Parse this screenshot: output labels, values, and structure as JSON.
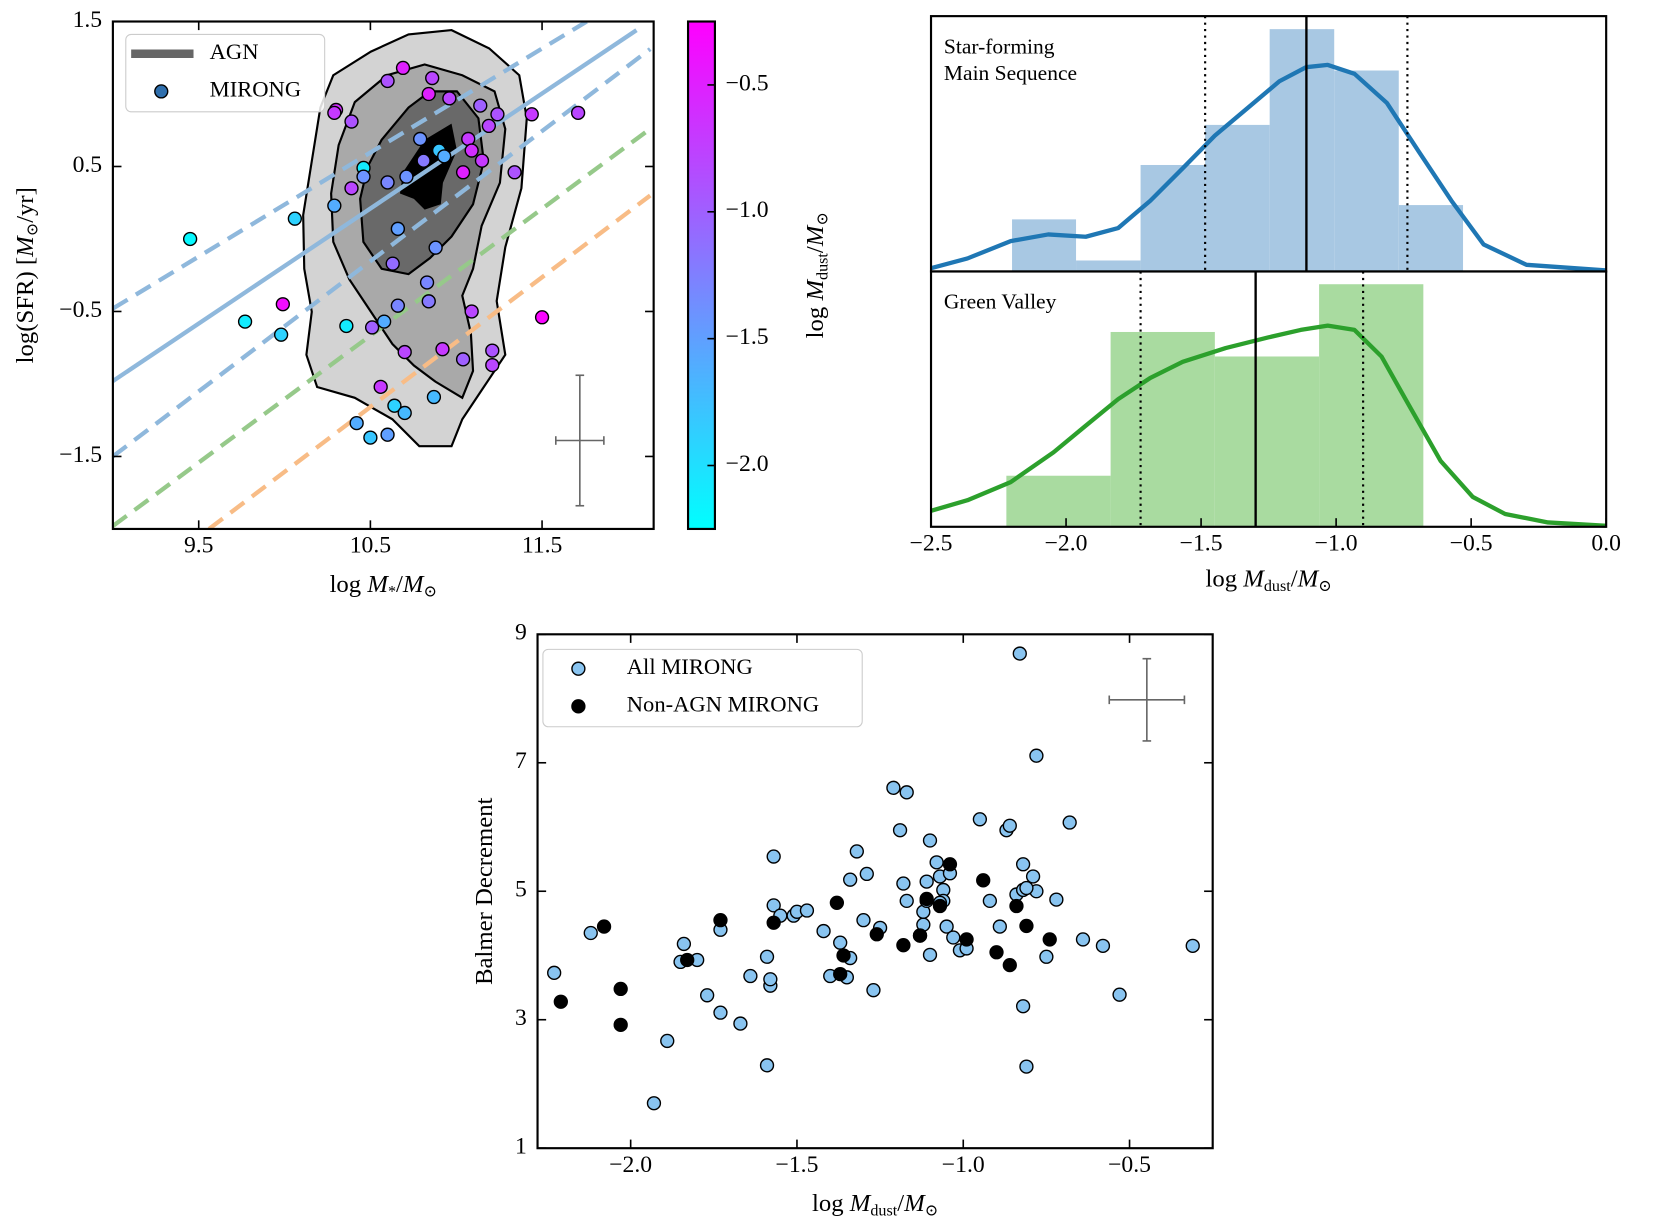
{
  "chart_data": [
    {
      "type": "scatter",
      "xlabel": [
        {
          "text": "log "
        },
        {
          "text": "M",
          "style": "i"
        },
        {
          "text": "*",
          "style": "sub"
        },
        {
          "text": "/"
        },
        {
          "text": "M",
          "style": "i"
        },
        {
          "text": "⊙",
          "style": "sub"
        }
      ],
      "ylabel": [
        {
          "text": "log(SFR) ["
        },
        {
          "text": "M",
          "style": "i"
        },
        {
          "text": "⊙",
          "style": "sub"
        },
        {
          "text": "/yr]"
        }
      ],
      "xlim": [
        9.0,
        12.15
      ],
      "ylim": [
        -2.0,
        1.5
      ],
      "xticks": [
        9.5,
        10.5,
        11.5
      ],
      "yticks": [
        1.5,
        0.5,
        {
          "value": -0.5,
          "label": "−0.5"
        },
        {
          "value": -1.5,
          "label": "−1.5"
        }
      ],
      "legend": "upper left",
      "series": [
        {
          "name": "AGN",
          "color": "#666666"
        },
        {
          "name": "MIRONG",
          "color": "#2f6fad",
          "x": [
            9.45,
            9.99,
            9.77,
            9.98,
            10.06,
            10.3,
            10.39,
            10.46,
            10.6,
            10.69,
            10.86,
            10.84,
            10.96,
            11.14,
            11.24,
            11.44,
            11.71,
            11.5,
            11.07,
            11.04,
            11.09,
            10.9,
            10.93,
            10.81,
            10.71,
            10.6,
            10.46,
            10.39,
            10.29,
            10.66,
            10.63,
            10.88,
            10.83,
            10.84,
            10.66,
            10.58,
            10.51,
            11.09,
            10.7,
            10.92,
            11.04,
            11.21,
            11.21,
            10.56,
            10.64,
            10.87,
            10.7,
            10.42,
            10.5,
            10.6,
            10.36,
            11.34,
            11.15,
            11.19,
            10.29,
            10.79
          ],
          "y": [
            0.0,
            -0.45,
            -0.57,
            -0.66,
            0.14,
            0.89,
            0.81,
            0.49,
            1.09,
            1.18,
            1.11,
            1.0,
            0.97,
            0.92,
            0.86,
            0.86,
            0.87,
            -0.54,
            0.69,
            0.46,
            0.61,
            0.61,
            0.57,
            0.54,
            0.43,
            0.39,
            0.43,
            0.35,
            0.23,
            0.07,
            -0.17,
            -0.06,
            -0.3,
            -0.43,
            -0.46,
            -0.57,
            -0.61,
            -0.5,
            -0.78,
            -0.76,
            -0.83,
            -0.77,
            -0.87,
            -1.02,
            -1.15,
            -1.09,
            -1.2,
            -1.27,
            -1.37,
            -1.35,
            -0.6,
            0.46,
            0.54,
            0.78,
            0.87,
            0.69
          ],
          "c": [
            -2.2,
            -0.35,
            -2.1,
            -1.9,
            -1.9,
            -0.6,
            -0.9,
            -2.1,
            -0.9,
            -0.5,
            -0.8,
            -0.5,
            -0.8,
            -1.0,
            -0.9,
            -0.7,
            -0.8,
            -0.3,
            -0.7,
            -0.5,
            -0.6,
            -1.8,
            -1.6,
            -1.2,
            -1.4,
            -1.3,
            -1.4,
            -0.8,
            -1.6,
            -1.5,
            -1.1,
            -1.4,
            -1.3,
            -1.2,
            -1.3,
            -1.6,
            -1.0,
            -0.8,
            -0.8,
            -0.7,
            -1.0,
            -0.9,
            -0.8,
            -0.7,
            -1.9,
            -1.7,
            -1.7,
            -1.6,
            -1.8,
            -1.5,
            -2.1,
            -0.9,
            -0.7,
            -0.8,
            -0.7,
            -1.4
          ]
        }
      ],
      "colorbar": {
        "label": [
          {
            "text": "log "
          },
          {
            "text": "M",
            "style": "i"
          },
          {
            "text": "dust",
            "style": "sub"
          },
          {
            "text": "/"
          },
          {
            "text": "M",
            "style": "i"
          },
          {
            "text": "⊙",
            "style": "sub"
          }
        ],
        "lim": [
          -2.25,
          -0.25
        ],
        "colors": [
          "#00ffff",
          "#ff00ff"
        ],
        "ticks": [
          {
            "value": -0.5,
            "label": "−0.5"
          },
          {
            "value": -1.0,
            "label": "−1.0"
          },
          {
            "value": -1.5,
            "label": "−1.5"
          },
          {
            "value": -2.0,
            "label": "−2.0"
          }
        ]
      },
      "reference_lines": [
        {
          "color": "#8fb8dc",
          "dashed": true,
          "x": [
            9.0,
            11.76
          ],
          "y": [
            -0.48,
            1.5
          ]
        },
        {
          "color": "#8fb8dc",
          "dashed": false,
          "x": [
            9.0,
            12.05
          ],
          "y": [
            -0.98,
            1.44
          ]
        },
        {
          "color": "#8fb8dc",
          "dashed": true,
          "x": [
            9.0,
            12.13
          ],
          "y": [
            -1.5,
            1.31
          ]
        },
        {
          "color": "#96c98a",
          "dashed": true,
          "x": [
            9.0,
            12.13
          ],
          "y": [
            -1.98,
            0.76
          ]
        },
        {
          "color": "#f8bc86",
          "dashed": true,
          "x": [
            9.56,
            12.13
          ],
          "y": [
            -2.0,
            0.3
          ]
        }
      ],
      "error_bar": {
        "x": 11.72,
        "y": -1.39,
        "xerr": 0.14,
        "yerr": 0.45,
        "color": "#666666"
      }
    },
    {
      "type": "histogram",
      "xlabel": [
        {
          "text": "log "
        },
        {
          "text": "M",
          "style": "i"
        },
        {
          "text": "dust",
          "style": "sub"
        },
        {
          "text": "/"
        },
        {
          "text": "M",
          "style": "i"
        },
        {
          "text": "⊙",
          "style": "sub"
        }
      ],
      "xlim": [
        -2.5,
        0.0
      ],
      "ylim": [
        0,
        1
      ],
      "xticks": [
        {
          "value": -2.5,
          "label": "−2.5"
        },
        {
          "value": -2.0,
          "label": "−2.0"
        },
        {
          "value": -1.5,
          "label": "−1.5"
        },
        {
          "value": -1.0,
          "label": "−1.0"
        },
        {
          "value": -0.5,
          "label": "−0.5"
        },
        {
          "value": 0.0,
          "label": "0.0"
        }
      ],
      "panels": [
        {
          "label": [
            "Star-forming",
            "Main Sequence"
          ],
          "color": "#1f77b4",
          "bar_color": "#a8c8e3",
          "bins": [
            -2.2,
            -1.963,
            -1.724,
            -1.485,
            -1.246,
            -1.007,
            -0.768,
            -0.53
          ],
          "counts": [
            0.204,
            0.043,
            0.417,
            0.574,
            0.949,
            0.787,
            0.26
          ],
          "kde": {
            "x": [
              -2.5,
              -2.365,
              -2.205,
              -2.066,
              -1.927,
              -1.807,
              -1.688,
              -1.568,
              -1.449,
              -1.33,
              -1.21,
              -1.111,
              -1.031,
              -0.932,
              -0.812,
              -0.693,
              -0.573,
              -0.454,
              -0.295,
              0.0
            ],
            "y": [
              0.013,
              0.051,
              0.119,
              0.145,
              0.136,
              0.17,
              0.277,
              0.404,
              0.532,
              0.638,
              0.745,
              0.8,
              0.809,
              0.774,
              0.66,
              0.468,
              0.277,
              0.106,
              0.026,
              0.004
            ]
          },
          "lines": [
            {
              "value": -1.11,
              "style": "solid"
            },
            {
              "value": -1.485,
              "style": "dotted"
            },
            {
              "value": -0.736,
              "style": "dotted"
            }
          ]
        },
        {
          "label": [
            "Green Valley"
          ],
          "color": "#2ca02c",
          "bar_color": "#a9dba0",
          "bins": [
            -2.221,
            -1.835,
            -1.449,
            -1.063,
            -0.677
          ],
          "counts": [
            0.2,
            0.763,
            0.667,
            0.95
          ],
          "kde": {
            "x": [
              -2.5,
              -2.365,
              -2.205,
              -2.046,
              -1.927,
              -1.807,
              -1.688,
              -1.568,
              -1.409,
              -1.25,
              -1.131,
              -1.031,
              -0.932,
              -0.832,
              -0.732,
              -0.613,
              -0.494,
              -0.374,
              -0.215,
              0.0
            ],
            "y": [
              0.0625,
              0.104,
              0.175,
              0.292,
              0.396,
              0.5,
              0.583,
              0.646,
              0.7,
              0.742,
              0.771,
              0.788,
              0.771,
              0.667,
              0.479,
              0.258,
              0.117,
              0.05,
              0.017,
              0.004
            ]
          },
          "lines": [
            {
              "value": -1.298,
              "style": "solid"
            },
            {
              "value": -1.724,
              "style": "dotted"
            },
            {
              "value": -0.9,
              "style": "dotted"
            }
          ]
        }
      ]
    },
    {
      "type": "scatter",
      "xlabel": [
        {
          "text": "log "
        },
        {
          "text": "M",
          "style": "i"
        },
        {
          "text": "dust",
          "style": "sub"
        },
        {
          "text": "/"
        },
        {
          "text": "M",
          "style": "i"
        },
        {
          "text": "⊙",
          "style": "sub"
        }
      ],
      "ylabel": [
        {
          "text": "Balmer Decrement"
        }
      ],
      "xlim": [
        -2.28,
        -0.25
      ],
      "ylim": [
        1,
        9
      ],
      "xticks": [
        {
          "value": -2.0,
          "label": "−2.0"
        },
        {
          "value": -1.5,
          "label": "−1.5"
        },
        {
          "value": -1.0,
          "label": "−1.0"
        },
        {
          "value": -0.5,
          "label": "−0.5"
        }
      ],
      "yticks": [
        9,
        7,
        5,
        3,
        1
      ],
      "legend": "upper left",
      "series": [
        {
          "name": "All MIRONG",
          "color": "#89c4f0",
          "x": [
            -2.23,
            -2.12,
            -1.93,
            -1.89,
            -1.85,
            -1.84,
            -1.8,
            -1.77,
            -1.73,
            -1.73,
            -1.67,
            -1.64,
            -1.59,
            -1.58,
            -1.58,
            -1.59,
            -1.57,
            -1.57,
            -1.55,
            -1.51,
            -1.5,
            -1.47,
            -1.42,
            -1.4,
            -1.37,
            -1.35,
            -1.34,
            -1.34,
            -1.32,
            -1.3,
            -1.29,
            -1.27,
            -1.25,
            -1.21,
            -1.17,
            -1.19,
            -1.17,
            -1.12,
            -1.12,
            -1.11,
            -1.1,
            -1.1,
            -1.08,
            -1.07,
            -1.06,
            -1.06,
            -1.05,
            -1.04,
            -1.03,
            -1.01,
            -0.99,
            -0.95,
            -0.92,
            -0.89,
            -0.87,
            -0.86,
            -0.84,
            -0.83,
            -0.82,
            -0.82,
            -0.82,
            -0.81,
            -0.78,
            -0.79,
            -0.78,
            -0.75,
            -0.72,
            -0.68,
            -0.64,
            -0.58,
            -0.53,
            -0.31,
            -1.11,
            -1.18,
            -1.13,
            -1.07,
            -0.81
          ],
          "y": [
            3.73,
            4.35,
            1.7,
            2.67,
            3.9,
            4.18,
            3.93,
            3.38,
            3.11,
            4.4,
            2.94,
            3.68,
            2.29,
            3.53,
            3.63,
            3.98,
            5.54,
            4.78,
            4.62,
            4.62,
            4.68,
            4.7,
            4.38,
            3.68,
            4.2,
            3.66,
            5.18,
            3.96,
            5.62,
            4.55,
            5.27,
            3.46,
            4.43,
            6.61,
            6.54,
            5.95,
            4.85,
            4.48,
            4.68,
            4.85,
            5.79,
            4.01,
            5.45,
            5.23,
            5.02,
            4.85,
            4.45,
            5.28,
            4.28,
            4.08,
            4.11,
            6.12,
            4.85,
            4.45,
            5.95,
            6.02,
            4.95,
            8.7,
            5.42,
            5.02,
            3.21,
            2.27,
            7.11,
            5.23,
            5.0,
            3.98,
            4.87,
            6.07,
            4.25,
            4.15,
            3.39,
            4.15,
            5.15,
            5.12,
            4.31,
            4.82,
            5.05
          ]
        },
        {
          "name": "Non-AGN MIRONG",
          "color": "#000000",
          "x": [
            -2.21,
            -2.08,
            -2.03,
            -2.03,
            -1.83,
            -1.73,
            -1.57,
            -1.38,
            -1.36,
            -1.37,
            -1.26,
            -1.18,
            -1.13,
            -1.11,
            -1.07,
            -1.04,
            -0.99,
            -0.94,
            -0.9,
            -0.86,
            -0.84,
            -0.81,
            -0.74
          ],
          "y": [
            3.28,
            4.45,
            3.48,
            2.92,
            3.93,
            4.55,
            4.51,
            4.82,
            4.0,
            3.71,
            4.33,
            4.16,
            4.31,
            4.88,
            4.77,
            5.42,
            4.25,
            5.17,
            4.05,
            3.85,
            4.77,
            4.46,
            4.25
          ]
        }
      ],
      "error_bar": {
        "x": -0.448,
        "y": 7.98,
        "xerr": 0.113,
        "yerr": 0.64,
        "color": "#666666"
      }
    }
  ]
}
